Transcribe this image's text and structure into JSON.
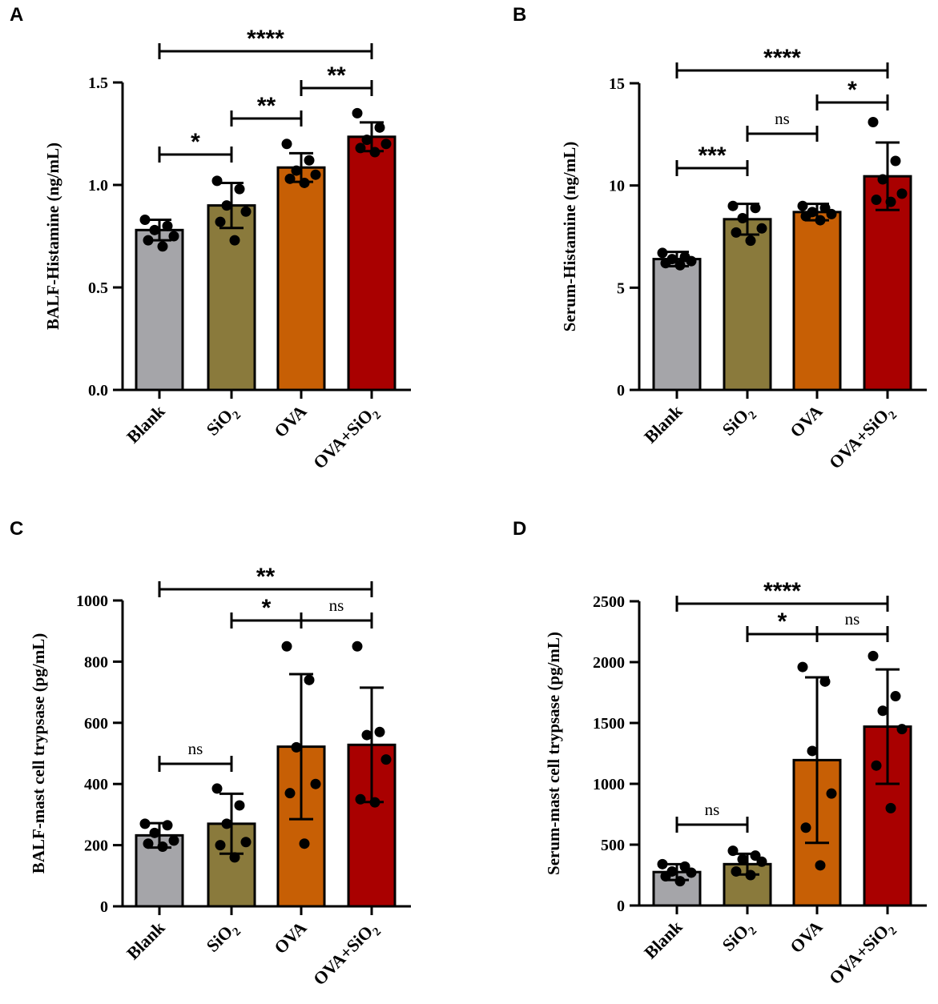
{
  "chart_data": [
    {
      "panel": "A",
      "type": "bar",
      "ylabel": "BALF-Histamine (ng/mL)",
      "ylim": [
        0,
        1.5
      ],
      "yticks": [
        "0.0",
        "0.5",
        "1.0",
        "1.5"
      ],
      "categories": [
        {
          "base": "Blank",
          "sub": ""
        },
        {
          "base": "SiO",
          "sub": "2"
        },
        {
          "base": "OVA",
          "sub": ""
        },
        {
          "base": "OVA+SiO",
          "sub": "2"
        }
      ],
      "colors": [
        "#a5a5a9",
        "#8a7a3c",
        "#c75f05",
        "#a90000"
      ],
      "means": [
        0.78,
        0.9,
        1.085,
        1.235
      ],
      "sd": [
        0.05,
        0.11,
        0.07,
        0.07
      ],
      "points": [
        [
          0.83,
          0.8,
          0.78,
          0.75,
          0.73,
          0.7
        ],
        [
          1.02,
          0.98,
          0.9,
          0.87,
          0.82,
          0.73
        ],
        [
          1.2,
          1.12,
          1.07,
          1.05,
          1.03,
          1.01
        ],
        [
          1.35,
          1.28,
          1.22,
          1.2,
          1.18,
          1.16
        ]
      ],
      "significance": [
        {
          "from": 0,
          "to": 3,
          "label": "****"
        },
        {
          "from": 2,
          "to": 3,
          "label": "**"
        },
        {
          "from": 1,
          "to": 2,
          "label": "**"
        },
        {
          "from": 0,
          "to": 1,
          "label": "*"
        }
      ]
    },
    {
      "panel": "B",
      "type": "bar",
      "ylabel": "Serum-Histamine (ng/mL)",
      "ylim": [
        0,
        15
      ],
      "yticks": [
        "0",
        "5",
        "10",
        "15"
      ],
      "categories": [
        {
          "base": "Blank",
          "sub": ""
        },
        {
          "base": "SiO",
          "sub": "2"
        },
        {
          "base": "OVA",
          "sub": ""
        },
        {
          "base": "OVA+SiO",
          "sub": "2"
        }
      ],
      "colors": [
        "#a5a5a9",
        "#8a7a3c",
        "#c75f05",
        "#a90000"
      ],
      "means": [
        6.4,
        8.35,
        8.7,
        10.45
      ],
      "sd": [
        0.35,
        0.75,
        0.4,
        1.65
      ],
      "points": [
        [
          6.7,
          6.5,
          6.4,
          6.3,
          6.2,
          6.1
        ],
        [
          9.0,
          8.9,
          8.4,
          7.9,
          7.7,
          7.3
        ],
        [
          9.0,
          8.9,
          8.7,
          8.6,
          8.5,
          8.3
        ],
        [
          13.1,
          11.2,
          10.3,
          9.6,
          9.3,
          9.2
        ]
      ],
      "significance": [
        {
          "from": 0,
          "to": 3,
          "label": "****"
        },
        {
          "from": 2,
          "to": 3,
          "label": "*"
        },
        {
          "from": 1,
          "to": 2,
          "label": "ns"
        },
        {
          "from": 0,
          "to": 1,
          "label": "***"
        }
      ]
    },
    {
      "panel": "C",
      "type": "bar",
      "ylabel": "BALF-mast cell trypsase (pg/mL)",
      "ylim": [
        0,
        1000
      ],
      "yticks": [
        "0",
        "200",
        "400",
        "600",
        "800",
        "1000"
      ],
      "categories": [
        {
          "base": "Blank",
          "sub": ""
        },
        {
          "base": "SiO",
          "sub": "2"
        },
        {
          "base": "OVA",
          "sub": ""
        },
        {
          "base": "OVA+SiO",
          "sub": "2"
        }
      ],
      "colors": [
        "#a5a5a9",
        "#8a7a3c",
        "#c75f05",
        "#a90000"
      ],
      "means": [
        232,
        270,
        522,
        528
      ],
      "sd": [
        40,
        98,
        237,
        187
      ],
      "points": [
        [
          270,
          265,
          240,
          215,
          205,
          195
        ],
        [
          385,
          330,
          270,
          210,
          200,
          160
        ],
        [
          850,
          740,
          520,
          400,
          370,
          205
        ],
        [
          850,
          570,
          560,
          480,
          350,
          340
        ]
      ],
      "significance": [
        {
          "from": 0,
          "to": 3,
          "label": "**"
        },
        {
          "from": 1,
          "to": 2,
          "label": "*"
        },
        {
          "from": 2,
          "to": 3,
          "label": "ns"
        },
        {
          "from": 0,
          "to": 1,
          "label": "ns"
        }
      ]
    },
    {
      "panel": "D",
      "type": "bar",
      "ylabel": "Serum-mast cell trypsase (pg/mL)",
      "ylim": [
        0,
        2500
      ],
      "yticks": [
        "0",
        "500",
        "1000",
        "1500",
        "2000",
        "2500"
      ],
      "categories": [
        {
          "base": "Blank",
          "sub": ""
        },
        {
          "base": "SiO",
          "sub": "2"
        },
        {
          "base": "OVA",
          "sub": ""
        },
        {
          "base": "OVA+SiO",
          "sub": "2"
        }
      ],
      "colors": [
        "#a5a5a9",
        "#8a7a3c",
        "#c75f05",
        "#a90000"
      ],
      "means": [
        275,
        340,
        1195,
        1470
      ],
      "sd": [
        65,
        85,
        680,
        470
      ],
      "points": [
        [
          340,
          320,
          280,
          270,
          240,
          200
        ],
        [
          450,
          410,
          380,
          360,
          280,
          250
        ],
        [
          1960,
          1840,
          1270,
          920,
          640,
          330
        ],
        [
          2050,
          1720,
          1600,
          1450,
          1150,
          800
        ]
      ],
      "significance": [
        {
          "from": 0,
          "to": 3,
          "label": "****"
        },
        {
          "from": 1,
          "to": 2,
          "label": "*"
        },
        {
          "from": 2,
          "to": 3,
          "label": "ns"
        },
        {
          "from": 0,
          "to": 1,
          "label": "ns"
        }
      ]
    }
  ]
}
